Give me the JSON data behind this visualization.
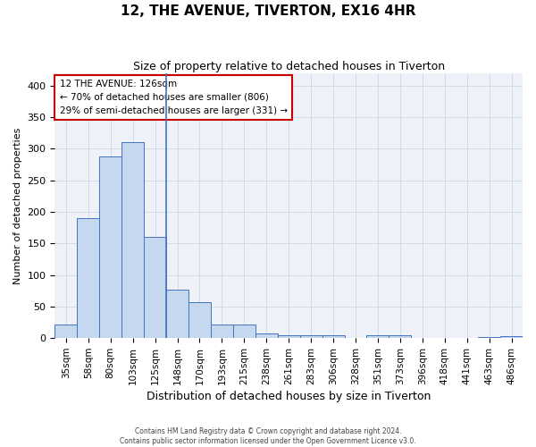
{
  "title": "12, THE AVENUE, TIVERTON, EX16 4HR",
  "subtitle": "Size of property relative to detached houses in Tiverton",
  "xlabel": "Distribution of detached houses by size in Tiverton",
  "ylabel": "Number of detached properties",
  "categories": [
    "35sqm",
    "58sqm",
    "80sqm",
    "103sqm",
    "125sqm",
    "148sqm",
    "170sqm",
    "193sqm",
    "215sqm",
    "238sqm",
    "261sqm",
    "283sqm",
    "306sqm",
    "328sqm",
    "351sqm",
    "373sqm",
    "396sqm",
    "418sqm",
    "441sqm",
    "463sqm",
    "486sqm"
  ],
  "values": [
    22,
    190,
    288,
    310,
    160,
    77,
    57,
    22,
    22,
    7,
    5,
    5,
    4,
    0,
    4,
    4,
    0,
    0,
    0,
    2,
    3
  ],
  "bar_color": "#c5d8ed",
  "bar_edge_color": "#4472c4",
  "property_line_index": 4,
  "property_label": "12 THE AVENUE: 126sqm",
  "annotation_line1": "← 70% of detached houses are smaller (806)",
  "annotation_line2": "29% of semi-detached houses are larger (331) →",
  "annotation_box_color": "#ffffff",
  "annotation_box_edge": "#cc0000",
  "vline_color": "#4472c4",
  "grid_color": "#d0dce8",
  "background_color": "#eef2f8",
  "ylim": [
    0,
    420
  ],
  "yticks": [
    0,
    50,
    100,
    150,
    200,
    250,
    300,
    350,
    400
  ],
  "footer1": "Contains HM Land Registry data © Crown copyright and database right 2024.",
  "footer2": "Contains public sector information licensed under the Open Government Licence v3.0.",
  "title_fontsize": 11,
  "subtitle_fontsize": 9,
  "xlabel_fontsize": 9,
  "ylabel_fontsize": 8,
  "tick_fontsize": 8,
  "xtick_fontsize": 7.5
}
